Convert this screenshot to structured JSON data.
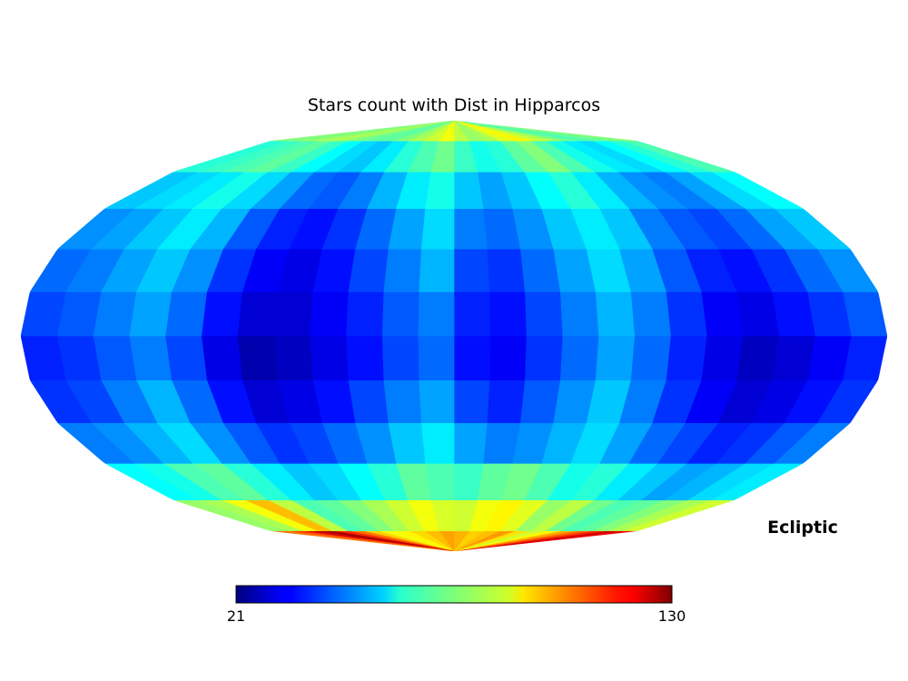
{
  "chart_data": {
    "type": "heatmap",
    "projection": "mollweide",
    "title": "Stars count with Dist in Hipparcos",
    "coord_label": "Ecliptic",
    "colormap": "jet",
    "colorbar": {
      "min": 21,
      "max": 130,
      "min_label": "21",
      "max_label": "130",
      "orientation": "horizontal",
      "placement": "bottom"
    },
    "grid": false,
    "legend": "none",
    "background": "#ffffff",
    "lat_bands_deg": [
      -90,
      -75,
      -60,
      -45,
      -30,
      -15,
      0,
      15,
      30,
      45,
      60,
      75,
      90
    ],
    "lon_bins": 24,
    "cell_values": [
      [
        118,
        122,
        112,
        105,
        98,
        90,
        84,
        92,
        100,
        96,
        94,
        97,
        99,
        96,
        93,
        90,
        88,
        94,
        104,
        112,
        126,
        122,
        110,
        104
      ],
      [
        84,
        80,
        76,
        72,
        70,
        74,
        82,
        78,
        86,
        90,
        88,
        84,
        85,
        88,
        84,
        80,
        76,
        72,
        70,
        82,
        96,
        88,
        80,
        78
      ],
      [
        60,
        58,
        54,
        52,
        56,
        60,
        66,
        64,
        70,
        74,
        72,
        68,
        70,
        72,
        66,
        62,
        58,
        56,
        60,
        66,
        72,
        70,
        64,
        62
      ],
      [
        48,
        44,
        40,
        38,
        42,
        46,
        52,
        58,
        54,
        50,
        48,
        52,
        60,
        56,
        50,
        46,
        42,
        40,
        44,
        50,
        58,
        54,
        50,
        48
      ],
      [
        40,
        36,
        32,
        30,
        34,
        40,
        48,
        56,
        50,
        44,
        38,
        42,
        52,
        48,
        42,
        36,
        32,
        30,
        36,
        46,
        54,
        48,
        42,
        40
      ],
      [
        38,
        34,
        30,
        28,
        32,
        38,
        46,
        52,
        46,
        40,
        34,
        36,
        46,
        42,
        36,
        32,
        28,
        26,
        32,
        42,
        48,
        44,
        40,
        38
      ],
      [
        44,
        40,
        36,
        32,
        34,
        40,
        48,
        54,
        48,
        42,
        36,
        38,
        48,
        44,
        38,
        34,
        30,
        30,
        36,
        46,
        52,
        48,
        44,
        42
      ],
      [
        50,
        46,
        40,
        36,
        38,
        44,
        52,
        58,
        52,
        46,
        40,
        42,
        54,
        48,
        42,
        36,
        32,
        34,
        40,
        50,
        56,
        52,
        48,
        46
      ],
      [
        56,
        52,
        46,
        42,
        44,
        48,
        56,
        60,
        56,
        50,
        46,
        48,
        58,
        52,
        46,
        40,
        36,
        38,
        44,
        54,
        60,
        56,
        52,
        50
      ],
      [
        62,
        58,
        52,
        48,
        50,
        54,
        60,
        66,
        62,
        56,
        52,
        56,
        64,
        60,
        54,
        48,
        44,
        46,
        52,
        58,
        64,
        60,
        58,
        56
      ],
      [
        70,
        66,
        62,
        58,
        60,
        64,
        70,
        76,
        72,
        66,
        64,
        68,
        74,
        70,
        66,
        60,
        56,
        58,
        62,
        68,
        72,
        70,
        68,
        66
      ],
      [
        76,
        74,
        72,
        70,
        74,
        80,
        84,
        90,
        86,
        80,
        78,
        82,
        88,
        84,
        80,
        76,
        72,
        72,
        74,
        78,
        80,
        78,
        76,
        76
      ]
    ]
  }
}
